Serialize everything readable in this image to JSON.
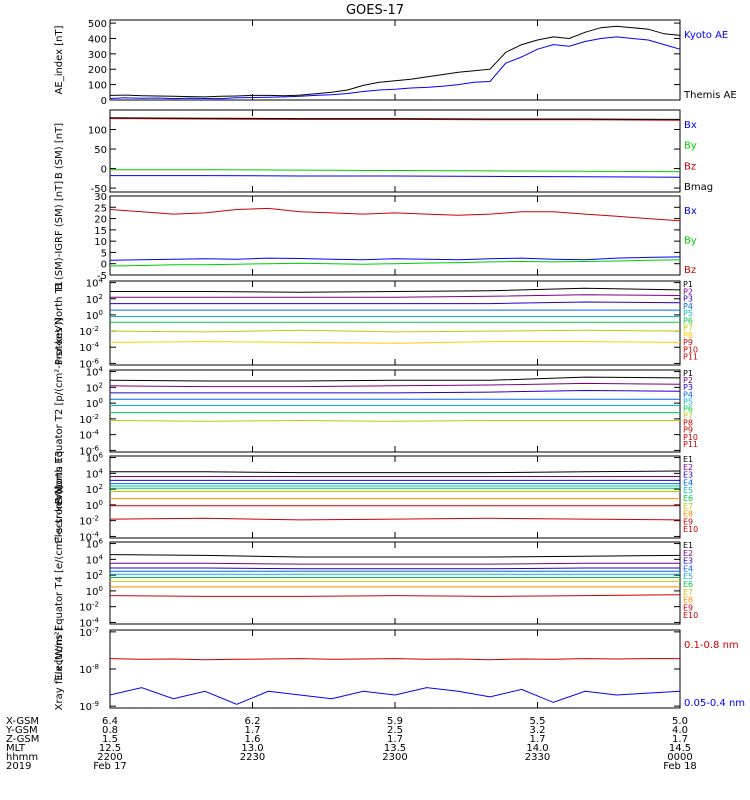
{
  "title": "GOES-17",
  "colors": {
    "axis": "#000000",
    "black": "#000000",
    "blue": "#0000ff",
    "green": "#00cc00",
    "red": "#cc0000"
  },
  "chart_data": [
    {
      "type": "line",
      "id": "ae",
      "ylabel": "AE_index [nT]",
      "ylim": [
        0,
        520
      ],
      "yscale": "linear",
      "ticks": [
        0,
        100,
        200,
        300,
        400,
        500
      ],
      "tick_labels": [
        "0",
        "100",
        "200",
        "300",
        "400",
        "500"
      ],
      "x": [
        0,
        5,
        10,
        15,
        20,
        25,
        30,
        35,
        40,
        45,
        50,
        55,
        60,
        65,
        70,
        75,
        80,
        85,
        90,
        95,
        100,
        105,
        110,
        115,
        120,
        125,
        130,
        135,
        140,
        145,
        150,
        155,
        160,
        165,
        170,
        175,
        180
      ],
      "series": [
        {
          "name": "Kyoto AE",
          "color": "#0000ff",
          "values": [
            10,
            14,
            11,
            13,
            9,
            12,
            10,
            9,
            14,
            16,
            18,
            20,
            24,
            30,
            34,
            42,
            55,
            65,
            70,
            78,
            82,
            90,
            100,
            115,
            120,
            240,
            280,
            330,
            360,
            350,
            380,
            400,
            410,
            400,
            390,
            360,
            330
          ]
        },
        {
          "name": "Themis AE",
          "color": "#000000",
          "values": [
            30,
            32,
            28,
            26,
            24,
            22,
            20,
            24,
            26,
            30,
            30,
            28,
            32,
            40,
            50,
            65,
            95,
            115,
            125,
            135,
            150,
            165,
            180,
            190,
            200,
            310,
            360,
            390,
            410,
            400,
            440,
            470,
            480,
            470,
            460,
            430,
            420
          ]
        }
      ]
    },
    {
      "type": "line",
      "id": "bsm",
      "ylabel": "B (SM) [nT]",
      "ylim": [
        -60,
        150
      ],
      "yscale": "linear",
      "ticks": [
        -50,
        0,
        50,
        100
      ],
      "tick_labels": [
        "-50",
        "0",
        "50",
        "100"
      ],
      "x": [
        0,
        30,
        60,
        90,
        120,
        150,
        180
      ],
      "series": [
        {
          "name": "Bx",
          "color": "#0000ff",
          "values": [
            -18,
            -18,
            -19,
            -19,
            -20,
            -21,
            -22
          ]
        },
        {
          "name": "By",
          "color": "#00cc00",
          "values": [
            -3,
            -3,
            -4,
            -5,
            -6,
            -7,
            -8
          ]
        },
        {
          "name": "Bz",
          "color": "#cc0000",
          "values": [
            128,
            127,
            126,
            126,
            125,
            125,
            124
          ]
        },
        {
          "name": "Bmag",
          "color": "#000000",
          "values": [
            130,
            129,
            128,
            128,
            127,
            127,
            126
          ]
        }
      ]
    },
    {
      "type": "line",
      "id": "bigrf",
      "ylabel": "B (SM)-IGRF (SM) [nT]",
      "ylim": [
        -5,
        30
      ],
      "yscale": "linear",
      "ticks": [
        -5,
        0,
        5,
        10,
        15,
        20,
        25,
        30
      ],
      "tick_labels": [
        "-5",
        "0",
        "5",
        "10",
        "15",
        "20",
        "25",
        "30"
      ],
      "x": [
        0,
        10,
        20,
        30,
        40,
        50,
        60,
        70,
        80,
        90,
        100,
        110,
        120,
        130,
        140,
        150,
        160,
        170,
        180
      ],
      "series": [
        {
          "name": "Bx",
          "color": "#0000ff",
          "values": [
            1.5,
            1.8,
            2,
            2.2,
            2,
            2.5,
            2.3,
            2,
            1.8,
            2.2,
            2,
            1.8,
            2.2,
            2.5,
            2,
            1.8,
            2.5,
            2.8,
            3
          ]
        },
        {
          "name": "By",
          "color": "#00cc00",
          "values": [
            -1,
            -0.8,
            -0.5,
            -0.5,
            -0.2,
            0,
            0.2,
            0,
            -0.2,
            0,
            0.3,
            0.5,
            0.8,
            1,
            0.8,
            1,
            1.2,
            1.5,
            1.8
          ]
        },
        {
          "name": "Bz",
          "color": "#cc0000",
          "values": [
            24,
            23,
            22,
            22.5,
            24,
            24.5,
            23,
            22.5,
            22,
            22.5,
            22,
            21.5,
            22,
            23,
            23,
            22,
            21,
            20,
            19
          ]
        }
      ]
    },
    {
      "type": "line",
      "id": "protons_north",
      "ylabel": "Protons North T1",
      "ylim": [
        -6.2,
        4.2
      ],
      "yscale": "log",
      "ticks": [
        4,
        2,
        0,
        -2,
        -4,
        -6
      ],
      "tick_labels": [
        "10^4",
        "10^2",
        "10^0",
        "10^-2",
        "10^-4",
        "10^-6"
      ],
      "x": [
        0,
        30,
        60,
        90,
        120,
        150,
        180
      ],
      "series": [
        {
          "name": "P1",
          "color": "#000000",
          "values": [
            2.9,
            2.9,
            2.8,
            2.9,
            3,
            3.3,
            3.1
          ]
        },
        {
          "name": "P2",
          "color": "#7a0080",
          "values": [
            2.2,
            2.2,
            2.2,
            2.2,
            2.3,
            2.5,
            2.4
          ]
        },
        {
          "name": "P3",
          "color": "#2200cc",
          "values": [
            1.4,
            1.4,
            1.4,
            1.4,
            1.4,
            1.6,
            1.5
          ]
        },
        {
          "name": "P4",
          "color": "#0066ff",
          "values": [
            0.6,
            0.6,
            0.6,
            0.6,
            0.6,
            0.6,
            0.6
          ]
        },
        {
          "name": "P5",
          "color": "#00bbcc",
          "values": [
            -0.2,
            -0.2,
            -0.2,
            -0.2,
            -0.2,
            -0.2,
            -0.2
          ]
        },
        {
          "name": "P6",
          "color": "#00cc44",
          "values": [
            -0.9,
            -0.9,
            -0.9,
            -0.9,
            -0.9,
            -0.9,
            -0.9
          ]
        },
        {
          "name": "P7",
          "color": "#bbcc00",
          "values": [
            -2,
            -2.1,
            -1.9,
            -2.1,
            -2,
            -1.9,
            -2
          ]
        },
        {
          "name": "P8",
          "color": "#ffcc00",
          "values": [
            -3.4,
            -3.3,
            -3.4,
            -3.5,
            -3.3,
            -3.3,
            -3.4
          ]
        }
      ],
      "labels": [
        "P1",
        "P2",
        "P3",
        "P4",
        "P5",
        "P6",
        "P7",
        "P8",
        "P9",
        "P10",
        "P11"
      ]
    },
    {
      "type": "line",
      "id": "protons_equator",
      "ylabel": "Protons Equator T2 [p/(cm²-s-sr-keV)]",
      "ylim": [
        -6.2,
        4.2
      ],
      "yscale": "log",
      "ticks": [
        4,
        2,
        0,
        -2,
        -4,
        -6
      ],
      "tick_labels": [
        "10^4",
        "10^2",
        "10^0",
        "10^-2",
        "10^-4",
        "10^-6"
      ],
      "x": [
        0,
        30,
        60,
        90,
        120,
        150,
        180
      ],
      "series": [
        {
          "name": "P1",
          "color": "#000000",
          "values": [
            2.9,
            2.8,
            2.8,
            2.9,
            2.9,
            3.3,
            3.2
          ]
        },
        {
          "name": "P2",
          "color": "#7a0080",
          "values": [
            2.2,
            2.1,
            2.1,
            2.2,
            2.3,
            2.5,
            2.4
          ]
        },
        {
          "name": "P3",
          "color": "#2200cc",
          "values": [
            1.3,
            1.3,
            1.3,
            1.3,
            1.4,
            1.6,
            1.5
          ]
        },
        {
          "name": "P4",
          "color": "#0066ff",
          "values": [
            0.5,
            0.5,
            0.5,
            0.5,
            0.5,
            0.5,
            0.5
          ]
        },
        {
          "name": "P5",
          "color": "#00bbcc",
          "values": [
            -0.3,
            -0.3,
            -0.3,
            -0.3,
            -0.3,
            -0.3,
            -0.3
          ]
        },
        {
          "name": "P6",
          "color": "#00cc44",
          "values": [
            -1.2,
            -1.2,
            -1.2,
            -1.2,
            -1.2,
            -1.2,
            -1.2
          ]
        },
        {
          "name": "P7",
          "color": "#bbcc00",
          "values": [
            -2.2,
            -2.3,
            -2.2,
            -2.3,
            -2.2,
            -2.2,
            -2.2
          ]
        }
      ],
      "labels": [
        "P1",
        "P2",
        "P3",
        "P4",
        "P5",
        "P6",
        "P7",
        "P8",
        "P9",
        "P10",
        "P11"
      ]
    },
    {
      "type": "line",
      "id": "electrons_north",
      "ylabel": "Electrons North T3",
      "ylim": [
        -4.2,
        6.2
      ],
      "yscale": "log",
      "ticks": [
        6,
        4,
        2,
        0,
        -2,
        -4
      ],
      "tick_labels": [
        "10^6",
        "10^4",
        "10^2",
        "10^0",
        "10^-2",
        "10^-4"
      ],
      "x": [
        0,
        30,
        60,
        90,
        120,
        150,
        180
      ],
      "series": [
        {
          "name": "E1",
          "color": "#000000",
          "values": [
            4.2,
            4.2,
            4.1,
            4.1,
            4.1,
            4.2,
            4.3
          ]
        },
        {
          "name": "E2",
          "color": "#7a0080",
          "values": [
            3.6,
            3.6,
            3.6,
            3.6,
            3.6,
            3.6,
            3.6
          ]
        },
        {
          "name": "E3",
          "color": "#2200cc",
          "values": [
            3.1,
            3.1,
            3.1,
            3.1,
            3.1,
            3.1,
            3.1
          ]
        },
        {
          "name": "E4",
          "color": "#0066ff",
          "values": [
            2.7,
            2.7,
            2.7,
            2.7,
            2.7,
            2.7,
            2.7
          ]
        },
        {
          "name": "E5",
          "color": "#00bbcc",
          "values": [
            2.4,
            2.4,
            2.4,
            2.4,
            2.4,
            2.4,
            2.4
          ]
        },
        {
          "name": "E6",
          "color": "#00cc44",
          "values": [
            2.1,
            2.1,
            2.1,
            2.1,
            2.1,
            2.1,
            2.1
          ]
        },
        {
          "name": "E7",
          "color": "#bbcc00",
          "values": [
            1.7,
            1.7,
            1.7,
            1.7,
            1.7,
            1.7,
            1.7
          ]
        },
        {
          "name": "E8",
          "color": "#ff8800",
          "values": [
            0.8,
            0.8,
            0.8,
            0.8,
            0.8,
            0.8,
            0.8
          ]
        },
        {
          "name": "E9",
          "color": "#cc0000",
          "values": [
            -0.1,
            -0.1,
            -0.1,
            -0.1,
            -0.1,
            -0.1,
            -0.1
          ]
        },
        {
          "name": "E10",
          "color": "#cc0000",
          "values": [
            -1.8,
            -1.7,
            -1.9,
            -1.8,
            -1.7,
            -1.8,
            -1.9
          ]
        }
      ],
      "labels": [
        "E1",
        "E2",
        "E3",
        "E4",
        "E5",
        "E6",
        "E7",
        "E8",
        "E9",
        "E10"
      ]
    },
    {
      "type": "line",
      "id": "electrons_equator",
      "ylabel": "Electrons Equator T4 [e/(cm²-s-sr-keV)]",
      "ylim": [
        -4.2,
        6.2
      ],
      "yscale": "log",
      "ticks": [
        6,
        4,
        2,
        0,
        -2,
        -4
      ],
      "tick_labels": [
        "10^6",
        "10^4",
        "10^2",
        "10^0",
        "10^-2",
        "10^-4"
      ],
      "x": [
        0,
        30,
        60,
        90,
        120,
        150,
        180
      ],
      "series": [
        {
          "name": "E1",
          "color": "#000000",
          "values": [
            4.6,
            4.5,
            4.3,
            4.3,
            4.3,
            4.4,
            4.5
          ]
        },
        {
          "name": "E2",
          "color": "#7a0080",
          "values": [
            3.5,
            3.5,
            3.4,
            3.4,
            3.4,
            3.5,
            3.5
          ]
        },
        {
          "name": "E3",
          "color": "#2200cc",
          "values": [
            2.9,
            2.9,
            2.8,
            2.8,
            2.8,
            2.9,
            2.9
          ]
        },
        {
          "name": "E4",
          "color": "#0066ff",
          "values": [
            2.5,
            2.5,
            2.5,
            2.5,
            2.5,
            2.5,
            2.5
          ]
        },
        {
          "name": "E5",
          "color": "#00bbcc",
          "values": [
            2.1,
            2.1,
            2.1,
            2.1,
            2.1,
            2.1,
            2.1
          ]
        },
        {
          "name": "E6",
          "color": "#00cc44",
          "values": [
            1.7,
            1.7,
            1.7,
            1.7,
            1.7,
            1.7,
            1.7
          ]
        },
        {
          "name": "E7",
          "color": "#bbcc00",
          "values": [
            1.2,
            1.2,
            1.2,
            1.2,
            1.2,
            1.2,
            1.2
          ]
        },
        {
          "name": "E8",
          "color": "#ff8800",
          "values": [
            0.5,
            0.5,
            0.5,
            0.5,
            0.5,
            0.5,
            0.5
          ]
        },
        {
          "name": "E9",
          "color": "#cc0000",
          "values": [
            -0.6,
            -0.7,
            -0.7,
            -0.6,
            -0.7,
            -0.6,
            -0.5
          ]
        }
      ],
      "labels": [
        "E1",
        "E2",
        "E3",
        "E4",
        "E5",
        "E6",
        "E7",
        "E8",
        "E9",
        "E10"
      ]
    },
    {
      "type": "line",
      "id": "xray",
      "ylabel": "Xray flux [W/m²]",
      "ylim": [
        -9.05,
        -6.95
      ],
      "yscale": "log",
      "ticks": [
        -7,
        -8,
        -9
      ],
      "tick_labels": [
        "10^-7",
        "10^-8",
        "10^-9"
      ],
      "x": [
        0,
        10,
        20,
        30,
        40,
        50,
        60,
        70,
        80,
        90,
        100,
        110,
        120,
        130,
        140,
        150,
        160,
        170,
        180
      ],
      "series": [
        {
          "name": "0.1-0.8 nm",
          "color": "#cc0000",
          "values": [
            -7.72,
            -7.74,
            -7.73,
            -7.75,
            -7.74,
            -7.73,
            -7.72,
            -7.74,
            -7.73,
            -7.72,
            -7.74,
            -7.73,
            -7.75,
            -7.73,
            -7.74,
            -7.72,
            -7.73,
            -7.72,
            -7.72
          ]
        },
        {
          "name": "0.05-0.4 nm",
          "color": "#0000ff",
          "values": [
            -8.7,
            -8.5,
            -8.8,
            -8.6,
            -8.95,
            -8.6,
            -8.7,
            -8.8,
            -8.6,
            -8.7,
            -8.5,
            -8.6,
            -8.75,
            -8.55,
            -8.9,
            -8.6,
            -8.7,
            -8.65,
            -8.6
          ]
        }
      ]
    }
  ],
  "xaxis": {
    "row_labels": [
      "X-GSM",
      "Y-GSM",
      "Z-GSM",
      "MLT",
      "hhmm",
      "2019"
    ],
    "columns": [
      {
        "values": [
          "6.4",
          "0.8",
          "1.5",
          "12.5",
          "2200",
          "Feb 17"
        ]
      },
      {
        "values": [
          "6.2",
          "1.7",
          "1.6",
          "13.0",
          "2230",
          ""
        ]
      },
      {
        "values": [
          "5.9",
          "2.5",
          "1.7",
          "13.5",
          "2300",
          ""
        ]
      },
      {
        "values": [
          "5.5",
          "3.2",
          "1.7",
          "14.0",
          "2330",
          ""
        ]
      },
      {
        "values": [
          "5.0",
          "4.0",
          "1.7",
          "14.5",
          "0000",
          "Feb 18"
        ]
      }
    ]
  }
}
